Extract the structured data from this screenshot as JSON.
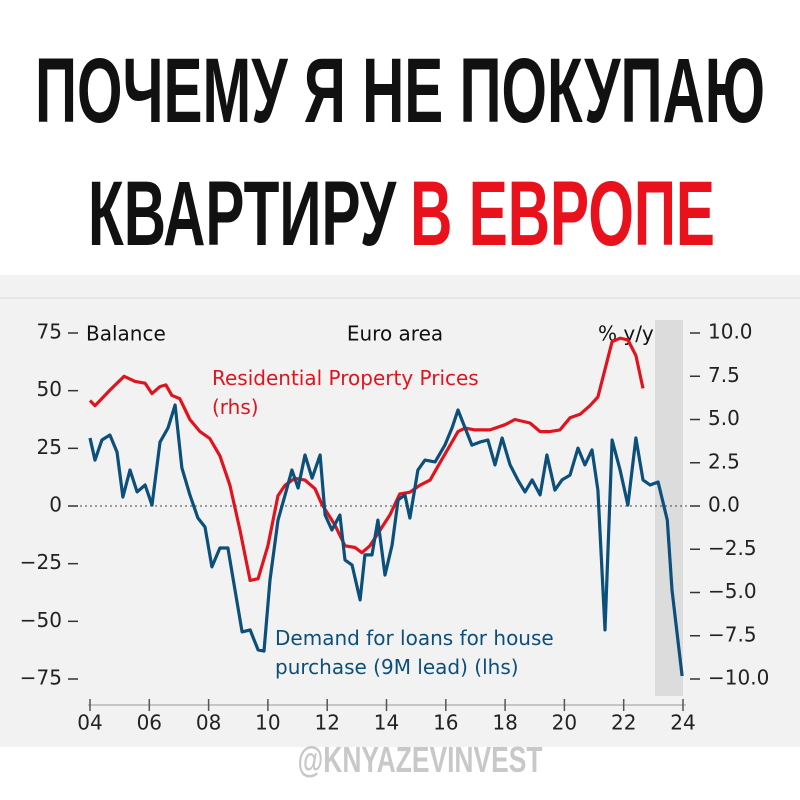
{
  "header": {
    "line1": "ПОЧЕМУ Я НЕ ПОКУПАЮ",
    "line2a": "КВАРТИРУ",
    "line2b": "В ЕВРОПЕ"
  },
  "watermark": "@KNYAZEVINVEST",
  "chart_data": {
    "type": "line",
    "title": "Euro area",
    "y_label": "Balance",
    "y2_label": "% y/y",
    "xlim": [
      2004,
      2024
    ],
    "xticks": [
      {
        "value": 2004,
        "label": "04"
      },
      {
        "value": 2006,
        "label": "06"
      },
      {
        "value": 2008,
        "label": "08"
      },
      {
        "value": 2010,
        "label": "10"
      },
      {
        "value": 2012,
        "label": "12"
      },
      {
        "value": 2014,
        "label": "14"
      },
      {
        "value": 2016,
        "label": "16"
      },
      {
        "value": 2018,
        "label": "18"
      },
      {
        "value": 2020,
        "label": "20"
      },
      {
        "value": 2022,
        "label": "22"
      },
      {
        "value": 2024,
        "label": "24"
      }
    ],
    "ylim": [
      -75,
      75
    ],
    "yticks": [
      {
        "value": -75,
        "label": "−75"
      },
      {
        "value": -50,
        "label": "−50"
      },
      {
        "value": -25,
        "label": "−25"
      },
      0,
      25,
      50,
      75
    ],
    "y2lim": [
      -10,
      10
    ],
    "y2ticks": [
      {
        "value": -10,
        "label": "−10.0"
      },
      {
        "value": -7.5,
        "label": "−7.5"
      },
      {
        "value": -5,
        "label": "−5.0"
      },
      {
        "value": -2.5,
        "label": "−2.5"
      },
      {
        "value": 0,
        "label": "0.0"
      },
      {
        "value": 2.5,
        "label": "2.5"
      },
      {
        "value": 5,
        "label": "5.0"
      },
      {
        "value": 7.5,
        "label": "7.5"
      },
      {
        "value": 10,
        "label": "10.0"
      }
    ],
    "series": [
      {
        "name": "Residential Property Prices (rhs)",
        "color": "#e0141e",
        "axis": "y2",
        "x": [
          2004.0,
          2004.17,
          2004.67,
          2005.15,
          2005.52,
          2005.86,
          2006.09,
          2006.36,
          2006.56,
          2006.76,
          2007.03,
          2007.37,
          2007.71,
          2008.04,
          2008.38,
          2008.72,
          2009.06,
          2009.4,
          2009.67,
          2010.0,
          2010.34,
          2010.58,
          2010.91,
          2011.25,
          2011.59,
          2011.82,
          2012.26,
          2012.6,
          2012.94,
          2013.17,
          2013.44,
          2013.78,
          2014.12,
          2014.45,
          2014.79,
          2015.13,
          2015.47,
          2015.8,
          2016.14,
          2016.41,
          2016.65,
          2016.98,
          2017.49,
          2018.0,
          2018.33,
          2018.84,
          2019.18,
          2019.51,
          2019.85,
          2020.19,
          2020.53,
          2020.86,
          2021.13,
          2021.37,
          2021.61,
          2021.88,
          2022.14,
          2022.41,
          2022.65
        ],
        "values": [
          6.1,
          5.8,
          6.7,
          7.5,
          7.2,
          7.1,
          6.5,
          6.9,
          7.0,
          6.4,
          6.2,
          5.0,
          4.3,
          3.9,
          2.9,
          1.2,
          -1.4,
          -4.3,
          -4.2,
          -2.3,
          0.6,
          1.2,
          1.6,
          1.5,
          1.0,
          0.1,
          -1.1,
          -2.3,
          -2.4,
          -2.7,
          -2.3,
          -1.4,
          -0.5,
          0.7,
          0.8,
          1.2,
          1.5,
          2.5,
          3.5,
          4.3,
          4.5,
          4.4,
          4.4,
          4.7,
          5.0,
          4.8,
          4.3,
          4.3,
          4.4,
          5.1,
          5.3,
          5.8,
          6.3,
          7.9,
          9.5,
          9.7,
          9.6,
          8.7,
          6.8
        ]
      },
      {
        "name": "Demand for loans for house purchase (9M lead) (lhs)",
        "color": "#0b4f7a",
        "axis": "y",
        "x": [
          2004.0,
          2004.17,
          2004.4,
          2004.67,
          2004.91,
          2005.11,
          2005.35,
          2005.59,
          2005.86,
          2006.09,
          2006.36,
          2006.63,
          2006.87,
          2007.1,
          2007.37,
          2007.64,
          2007.88,
          2008.11,
          2008.38,
          2008.65,
          2008.89,
          2009.13,
          2009.4,
          2009.67,
          2009.87,
          2010.07,
          2010.34,
          2010.58,
          2010.81,
          2011.02,
          2011.25,
          2011.49,
          2011.76,
          2011.93,
          2012.16,
          2012.43,
          2012.6,
          2012.84,
          2013.11,
          2013.27,
          2013.51,
          2013.71,
          2013.95,
          2014.19,
          2014.39,
          2014.62,
          2014.79,
          2015.06,
          2015.3,
          2015.64,
          2015.97,
          2016.21,
          2016.41,
          2016.65,
          2016.88,
          2017.15,
          2017.42,
          2017.66,
          2017.9,
          2018.17,
          2018.43,
          2018.67,
          2018.91,
          2019.18,
          2019.41,
          2019.68,
          2019.92,
          2020.19,
          2020.46,
          2020.69,
          2020.93,
          2021.13,
          2021.37,
          2021.61,
          2021.88,
          2022.14,
          2022.41,
          2022.65,
          2022.89,
          2023.16,
          2023.47,
          2023.63,
          2023.97
        ],
        "values": [
          29.5,
          19.9,
          28.6,
          30.8,
          23.4,
          3.9,
          15.6,
          6.1,
          9.1,
          0.4,
          27.7,
          33.8,
          43.8,
          16.5,
          4.8,
          -5.2,
          -9.1,
          -26.4,
          -18.2,
          -18.2,
          -36.4,
          -54.6,
          -53.7,
          -62.4,
          -62.9,
          -32.1,
          -6.1,
          4.8,
          15.6,
          7.8,
          22.1,
          12.1,
          22.1,
          -3.9,
          -10.4,
          -3.9,
          -23.4,
          -25.6,
          -40.7,
          -21.2,
          -21.2,
          -6.1,
          -29.9,
          -16.9,
          2.6,
          4.8,
          -5.2,
          15.6,
          19.9,
          19.1,
          26.4,
          33.8,
          41.6,
          33.8,
          26.4,
          27.7,
          28.6,
          17.8,
          29.5,
          17.8,
          11.3,
          6.1,
          11.3,
          4.8,
          22.1,
          6.9,
          11.3,
          13.4,
          25.1,
          17.8,
          24.3,
          6.9,
          -53.7,
          28.6,
          15.6,
          0.4,
          29.5,
          11.3,
          9.1,
          10.4,
          -6.1,
          -36.4,
          -73.7
        ]
      }
    ]
  }
}
